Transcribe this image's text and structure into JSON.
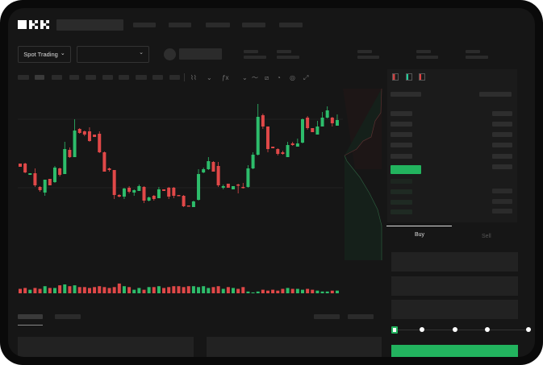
{
  "header": {
    "logo": "OKX"
  },
  "toolbar": {
    "market_type": "Spot Trading",
    "chevron": "⌄"
  },
  "colors": {
    "up": "#2dbd6b",
    "down": "#e04848",
    "accent": "#22b35e",
    "background": "#161616"
  },
  "order_form": {
    "tabs": [
      {
        "label": "Buy",
        "active": true
      },
      {
        "label": "Sell",
        "active": false
      }
    ],
    "leverage_slider_value": 0
  },
  "chart_icons": [
    "line-chart-icon",
    "indicator-icon",
    "drawing-icon",
    "ruler-icon",
    "camera-icon",
    "settings-icon",
    "fullscreen-icon"
  ],
  "chart_data": {
    "type": "candlestick",
    "note_fields": [
      "open",
      "high",
      "low",
      "close"
    ],
    "candles": [
      [
        67,
        67,
        63,
        63
      ],
      [
        67,
        68,
        55,
        56
      ],
      [
        53,
        55,
        53,
        55
      ],
      [
        55,
        61,
        38,
        40
      ],
      [
        38,
        39,
        32,
        34
      ],
      [
        31,
        47,
        27,
        47
      ],
      [
        48,
        48,
        40,
        40
      ],
      [
        44,
        64,
        43,
        62
      ],
      [
        61,
        62,
        51,
        53
      ],
      [
        54,
        94,
        54,
        85
      ],
      [
        84,
        87,
        74,
        75
      ],
      [
        75,
        122,
        75,
        108
      ],
      [
        110,
        111,
        104,
        105
      ],
      [
        107,
        108,
        101,
        103
      ],
      [
        107,
        112,
        94,
        95
      ],
      [
        103,
        103,
        100,
        100
      ],
      [
        104,
        107,
        80,
        81
      ],
      [
        81,
        82,
        57,
        57
      ],
      [
        61,
        62,
        57,
        59
      ],
      [
        59,
        59,
        23,
        28
      ],
      [
        28,
        29,
        25,
        26
      ],
      [
        26,
        37,
        23,
        36
      ],
      [
        37,
        39,
        30,
        32
      ],
      [
        31,
        35,
        27,
        34
      ],
      [
        33,
        41,
        33,
        39
      ],
      [
        38,
        39,
        18,
        21
      ],
      [
        21,
        26,
        20,
        25
      ],
      [
        27,
        28,
        21,
        23
      ],
      [
        24,
        38,
        24,
        35
      ],
      [
        35,
        35,
        33,
        33
      ],
      [
        37,
        38,
        23,
        26
      ],
      [
        37,
        38,
        24,
        27
      ],
      [
        28,
        28,
        27,
        27
      ],
      [
        27,
        28,
        13,
        14
      ],
      [
        15,
        15,
        14,
        14
      ],
      [
        13,
        21,
        13,
        20
      ],
      [
        22,
        60,
        21,
        54
      ],
      [
        56,
        62,
        55,
        60
      ],
      [
        60,
        75,
        59,
        70
      ],
      [
        69,
        70,
        57,
        57
      ],
      [
        64,
        69,
        38,
        40
      ],
      [
        37,
        41,
        35,
        39
      ],
      [
        42,
        42,
        37,
        37
      ],
      [
        35,
        39,
        35,
        39
      ],
      [
        41,
        42,
        30,
        40
      ],
      [
        38,
        43,
        36,
        37
      ],
      [
        38,
        65,
        37,
        61
      ],
      [
        61,
        81,
        60,
        78
      ],
      [
        78,
        141,
        77,
        125
      ],
      [
        127,
        129,
        110,
        113
      ],
      [
        113,
        113,
        81,
        85
      ],
      [
        88,
        88,
        86,
        86
      ],
      [
        85,
        86,
        77,
        79
      ],
      [
        81,
        83,
        78,
        79
      ],
      [
        75,
        94,
        75,
        90
      ],
      [
        92,
        94,
        89,
        90
      ],
      [
        88,
        98,
        88,
        92
      ],
      [
        93,
        123,
        92,
        122
      ],
      [
        124,
        126,
        109,
        111
      ],
      [
        111,
        111,
        106,
        106
      ],
      [
        103,
        120,
        103,
        113
      ],
      [
        113,
        131,
        113,
        124
      ],
      [
        124,
        138,
        123,
        133
      ],
      [
        124,
        125,
        113,
        117
      ],
      [
        114,
        128,
        114,
        121
      ]
    ],
    "volume": [
      5,
      6,
      4,
      6,
      5,
      8,
      6,
      6,
      9,
      10,
      8,
      9,
      7,
      7,
      6,
      7,
      8,
      7,
      6,
      7,
      11,
      8,
      7,
      4,
      6,
      4,
      7,
      7,
      8,
      6,
      7,
      8,
      8,
      7,
      8,
      8,
      7,
      8,
      6,
      7,
      8,
      5,
      7,
      6,
      5,
      7,
      2,
      1,
      2,
      4,
      3,
      4,
      3,
      5,
      6,
      5,
      5,
      4,
      5,
      4,
      3,
      2,
      2,
      3,
      3
    ]
  }
}
